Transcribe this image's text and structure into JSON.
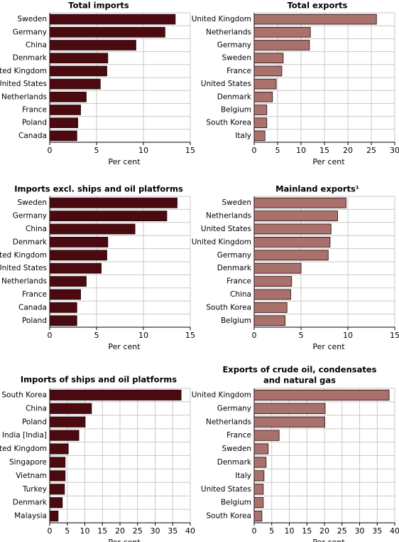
{
  "chart_data": [
    {
      "type": "barh",
      "title": "Total imports",
      "xlabel": "Per cent",
      "color": "#4a0a10",
      "categories": [
        "Sweden",
        "Germany",
        "China",
        "Denmark",
        "United Kingdom",
        "United States",
        "Netherlands",
        "France",
        "Poland",
        "Canada"
      ],
      "values": [
        13.4,
        12.3,
        9.2,
        6.2,
        6.1,
        5.4,
        3.9,
        3.3,
        3.0,
        2.9
      ],
      "xlim": [
        0,
        15
      ],
      "xticks": [
        0,
        5,
        10,
        15
      ],
      "grid": true
    },
    {
      "type": "barh",
      "title": "Total exports",
      "xlabel": "Per cent",
      "color": "#a8716b",
      "categories": [
        "United Kingdom",
        "Netherlands",
        "Germany",
        "Sweden",
        "France",
        "United States",
        "Denmark",
        "Belgium",
        "South Korea",
        "Italy"
      ],
      "values": [
        26.1,
        12.0,
        11.8,
        6.2,
        5.9,
        4.7,
        3.9,
        2.7,
        2.7,
        2.3
      ],
      "xlim": [
        0,
        30
      ],
      "xticks": [
        0,
        5,
        10,
        15,
        20,
        25,
        30
      ],
      "grid": true
    },
    {
      "type": "barh",
      "title": "Imports excl. ships and oil platforms",
      "xlabel": "Per cent",
      "color": "#4a0a10",
      "categories": [
        "Sweden",
        "Germany",
        "China",
        "Denmark",
        "United Kingdom",
        "United States",
        "Netherlands",
        "France",
        "Canada",
        "Poland"
      ],
      "values": [
        13.6,
        12.5,
        9.1,
        6.2,
        6.1,
        5.5,
        3.9,
        3.3,
        2.9,
        2.9
      ],
      "xlim": [
        0,
        15
      ],
      "xticks": [
        0,
        5,
        10,
        15
      ],
      "grid": true
    },
    {
      "type": "barh",
      "title": "Mainland exports¹",
      "xlabel": "Per cent",
      "color": "#a8716b",
      "categories": [
        "Sweden",
        "Netherlands",
        "United States",
        "United Kingdom",
        "Germany",
        "Denmark",
        "France",
        "China",
        "South Korea",
        "Belgium"
      ],
      "values": [
        9.8,
        8.9,
        8.2,
        8.1,
        7.9,
        5.0,
        4.0,
        3.9,
        3.5,
        3.3
      ],
      "xlim": [
        0,
        15
      ],
      "xticks": [
        0,
        5,
        10,
        15
      ],
      "grid": true
    },
    {
      "type": "barh",
      "title": "Imports of ships and oil platforms",
      "xlabel": "Per cent",
      "color": "#4a0a10",
      "categories": [
        "South Korea",
        "China",
        "Poland",
        "India [India]",
        "United Kingdom",
        "Singapore",
        "Vietnam",
        "Turkey",
        "Denmark",
        "Malaysia"
      ],
      "values": [
        37.4,
        11.9,
        10.1,
        8.3,
        5.3,
        4.4,
        4.4,
        4.2,
        3.6,
        2.4
      ],
      "xlim": [
        0,
        40
      ],
      "xticks": [
        0,
        5,
        10,
        15,
        20,
        25,
        30,
        35,
        40
      ],
      "grid": true
    },
    {
      "type": "barh",
      "title": [
        "Exports of crude oil, condensates",
        "and natural gas"
      ],
      "xlabel": "Per cent",
      "color": "#a8716b",
      "categories": [
        "United Kingdom",
        "Germany",
        "Netherlands",
        "France",
        "Sweden",
        "Denmark",
        "Italy",
        "United States",
        "Belgium",
        "South Korea"
      ],
      "values": [
        38.4,
        20.2,
        20.1,
        7.1,
        4.0,
        3.4,
        2.8,
        2.6,
        2.6,
        2.2
      ],
      "xlim": [
        0,
        40
      ],
      "xticks": [
        0,
        5,
        10,
        15,
        20,
        25,
        30,
        35,
        40
      ],
      "grid": true
    }
  ]
}
